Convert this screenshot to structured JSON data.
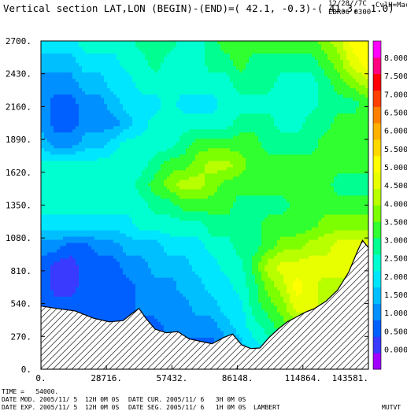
{
  "header": {
    "title": "Vertical section LAT,LON (BEGIN)-(END)=( 42.1, -0.3)-( 41.3,  1.0)",
    "stamp_date": "12/28//7C",
    "stamp_user": "CvlH=Mac",
    "stamp_code": "EBR06 0300"
  },
  "footer": {
    "time": "TIME =   54000.",
    "date_mod": "DATE MOD. 2005/11/ 5  12H 0M 0S",
    "date_cur": "DATE CUR. 2005/11/ 6   3H 0M 0S",
    "date_exp": "DATE EXP. 2005/11/ 5  12H 0M 0S",
    "date_seg": "DATE SEG. 2005/11/ 6   1H 0M 0S",
    "projection": "LAMBERT",
    "program": "MUTVT"
  },
  "chart_data": {
    "type": "heatmap",
    "title": "Vertical section LAT,LON (BEGIN)-(END)=( 42.1, -0.3)-( 41.3,  1.0)",
    "xlim": [
      0,
      143581
    ],
    "ylim": [
      0,
      2700
    ],
    "x_ticks": [
      "0.",
      "28716.",
      "57432.",
      "86148.",
      "114864.",
      "143581."
    ],
    "x_tick_values": [
      0,
      28716,
      57432,
      86148,
      114864,
      143581
    ],
    "y_ticks": [
      "0.",
      "270.",
      "540.",
      "810.",
      "1080.",
      "1350.",
      "1620.",
      "1890.",
      "2160.",
      "2430.",
      "2700."
    ],
    "y_tick_values": [
      0,
      270,
      540,
      810,
      1080,
      1350,
      1620,
      1890,
      2160,
      2430,
      2700
    ],
    "colorbar": {
      "labels": [
        "0.000",
        "0.500",
        "1.000",
        "1.500",
        "2.000",
        "2.500",
        "3.000",
        "3.500",
        "4.000",
        "4.500",
        "5.000",
        "5.500",
        "6.000",
        "6.500",
        "7.000",
        "7.500",
        "8.000"
      ],
      "values": [
        0,
        0.5,
        1,
        1.5,
        2,
        2.5,
        3,
        3.5,
        4,
        4.5,
        5,
        5.5,
        6,
        6.5,
        7,
        7.5,
        8
      ],
      "colors": [
        "#a000ff",
        "#3a3aff",
        "#0060ff",
        "#0090ff",
        "#00bfff",
        "#00e6ff",
        "#00ffd0",
        "#00ff90",
        "#30ff30",
        "#7cff00",
        "#b8ff00",
        "#e8ff00",
        "#ffff00",
        "#ffd800",
        "#ffb000",
        "#ff8000",
        "#ff4000",
        "#ff0000",
        "#ff0080",
        "#ff00ff"
      ]
    },
    "terrain": {
      "x": [
        0,
        7000,
        15000,
        23000,
        30000,
        36000,
        40000,
        43000,
        46000,
        50000,
        55000,
        60000,
        65000,
        70000,
        75000,
        80000,
        84000,
        88000,
        92000,
        96000,
        100000,
        104000,
        108000,
        112000,
        116000,
        120000,
        125000,
        130000,
        135000,
        139000,
        141000,
        143581
      ],
      "y": [
        520,
        500,
        480,
        420,
        390,
        400,
        460,
        500,
        420,
        330,
        300,
        310,
        250,
        230,
        210,
        260,
        290,
        200,
        170,
        175,
        260,
        330,
        390,
        430,
        470,
        500,
        560,
        650,
        800,
        980,
        1060,
        1000
      ]
    },
    "field_grid": {
      "rows_ascending_height": [
        [
          3,
          3,
          3,
          2,
          2,
          2,
          2,
          2,
          2,
          2,
          2,
          2,
          2,
          2,
          3,
          4,
          5,
          6,
          7,
          7,
          6,
          6,
          5,
          5
        ],
        [
          3,
          3,
          2,
          2,
          2,
          2,
          2,
          2,
          2,
          2,
          2,
          2,
          2,
          3,
          4,
          5,
          6,
          7,
          8,
          8,
          7,
          7,
          6,
          6
        ],
        [
          2,
          2,
          2,
          2,
          2,
          2,
          2,
          2,
          2,
          3,
          3,
          3,
          3,
          4,
          5,
          6,
          7,
          8,
          9,
          10,
          10,
          9,
          8,
          8
        ],
        [
          2,
          2,
          2,
          2,
          2,
          2,
          2,
          3,
          3,
          3,
          3,
          4,
          4,
          5,
          5,
          7,
          8,
          9,
          11,
          11,
          10,
          9,
          9,
          9
        ],
        [
          2,
          1,
          1,
          2,
          2,
          2,
          2,
          3,
          3,
          3,
          4,
          4,
          5,
          5,
          6,
          7,
          9,
          10,
          12,
          11,
          10,
          10,
          10,
          10
        ],
        [
          2,
          1,
          1,
          2,
          2,
          2,
          3,
          3,
          4,
          4,
          4,
          5,
          5,
          6,
          6,
          8,
          10,
          11,
          11,
          11,
          11,
          11,
          11,
          11
        ],
        [
          3,
          3,
          2,
          2,
          3,
          3,
          4,
          4,
          4,
          5,
          5,
          5,
          6,
          6,
          7,
          7,
          8,
          9,
          9,
          10,
          10,
          11,
          11,
          11
        ],
        [
          5,
          5,
          5,
          5,
          5,
          5,
          5,
          6,
          6,
          6,
          6,
          6,
          7,
          7,
          7,
          7,
          8,
          8,
          8,
          8,
          9,
          9,
          9,
          9
        ],
        [
          6,
          6,
          6,
          6,
          6,
          6,
          6,
          6,
          7,
          7,
          8,
          8,
          8,
          8,
          7,
          7,
          7,
          7,
          8,
          8,
          8,
          8,
          8,
          8
        ],
        [
          6,
          6,
          6,
          6,
          6,
          6,
          6,
          7,
          8,
          9,
          10,
          10,
          9,
          8,
          8,
          8,
          8,
          8,
          8,
          8,
          8,
          7,
          7,
          7
        ],
        [
          6,
          6,
          6,
          6,
          6,
          6,
          6,
          6,
          7,
          8,
          8,
          9,
          10,
          10,
          9,
          8,
          8,
          8,
          8,
          8,
          8,
          8,
          8,
          8
        ],
        [
          4,
          3,
          3,
          4,
          4,
          5,
          6,
          6,
          6,
          6,
          7,
          8,
          8,
          8,
          8,
          8,
          7,
          7,
          7,
          7,
          8,
          8,
          8,
          8
        ],
        [
          3,
          2,
          2,
          3,
          3,
          3,
          4,
          5,
          6,
          6,
          6,
          6,
          6,
          6,
          7,
          7,
          7,
          6,
          6,
          7,
          7,
          8,
          8,
          8
        ],
        [
          3,
          2,
          2,
          3,
          3,
          4,
          5,
          5,
          5,
          6,
          5,
          5,
          5,
          6,
          6,
          6,
          6,
          6,
          6,
          6,
          7,
          7,
          7,
          8
        ],
        [
          3,
          3,
          3,
          4,
          4,
          5,
          5,
          6,
          6,
          6,
          6,
          6,
          6,
          6,
          7,
          7,
          7,
          6,
          6,
          6,
          7,
          8,
          9,
          10
        ],
        [
          4,
          4,
          4,
          5,
          5,
          5,
          6,
          6,
          7,
          6,
          6,
          6,
          7,
          7,
          8,
          7,
          7,
          7,
          7,
          7,
          8,
          9,
          11,
          12
        ],
        [
          5,
          5,
          5,
          6,
          6,
          6,
          6,
          7,
          7,
          7,
          6,
          6,
          7,
          8,
          8,
          8,
          8,
          8,
          8,
          8,
          9,
          10,
          12,
          12
        ]
      ]
    }
  }
}
